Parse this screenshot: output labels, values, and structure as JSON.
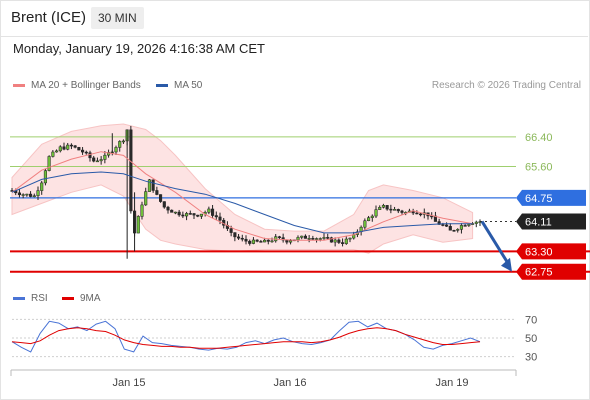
{
  "header": {
    "instrument": "Brent (ICE)",
    "interval": "30 MIN",
    "datetime": "Monday, January 19, 2026 4:16:38 AM CET"
  },
  "legend": {
    "bollinger_label": "MA 20 + Bollinger Bands",
    "ma50_label": "MA 50",
    "credit": "Research © 2026 Trading Central"
  },
  "rsi_legend": {
    "rsi_label": "RSI",
    "ma_label": "9MA"
  },
  "colors": {
    "bollinger": "#f08080",
    "ma50": "#2a5aa8",
    "resistance": "#9fcf6e",
    "pivot": "#2f6fe0",
    "support": "#e00000",
    "current": "#222222",
    "rsi": "#4a74d6",
    "rsi_ma": "#e00000"
  },
  "chart_data": [
    {
      "type": "candlestick",
      "title": "Brent (ICE)",
      "x_tick_labels": [
        "Jan 15",
        "Jan 16",
        "Jan 19"
      ],
      "ylim": [
        62.2,
        67.4
      ],
      "levels": [
        {
          "label": "66.40",
          "value": 66.4,
          "kind": "resistance"
        },
        {
          "label": "65.60",
          "value": 65.6,
          "kind": "resistance"
        },
        {
          "label": "64.75",
          "value": 64.75,
          "kind": "pivot"
        },
        {
          "label": "64.11",
          "value": 64.11,
          "kind": "current"
        },
        {
          "label": "63.30",
          "value": 63.3,
          "kind": "support"
        },
        {
          "label": "62.75",
          "value": 62.75,
          "kind": "support"
        }
      ],
      "forecast": {
        "from": 64.11,
        "to": 62.75,
        "direction": "down"
      },
      "price_path": [
        [
          0,
          64.95
        ],
        [
          3,
          64.85
        ],
        [
          6,
          64.8
        ],
        [
          8,
          65.2
        ],
        [
          10,
          65.85
        ],
        [
          13,
          66.1
        ],
        [
          16,
          66.15
        ],
        [
          19,
          66.0
        ],
        [
          22,
          65.75
        ],
        [
          25,
          65.85
        ],
        [
          28,
          66.15
        ],
        [
          30,
          66.35
        ],
        [
          31,
          66.6
        ],
        [
          32,
          64.4
        ],
        [
          33,
          63.8
        ],
        [
          35,
          64.6
        ],
        [
          37,
          65.2
        ],
        [
          39,
          64.8
        ],
        [
          41,
          64.5
        ],
        [
          44,
          64.35
        ],
        [
          47,
          64.3
        ],
        [
          50,
          64.3
        ],
        [
          53,
          64.4
        ],
        [
          56,
          64.15
        ],
        [
          59,
          63.75
        ],
        [
          62,
          63.6
        ],
        [
          65,
          63.55
        ],
        [
          68,
          63.55
        ],
        [
          71,
          63.65
        ],
        [
          74,
          63.6
        ],
        [
          77,
          63.65
        ],
        [
          80,
          63.7
        ],
        [
          83,
          63.65
        ],
        [
          86,
          63.6
        ],
        [
          89,
          63.55
        ],
        [
          92,
          63.7
        ],
        [
          94,
          64.0
        ],
        [
          96,
          64.2
        ],
        [
          98,
          64.4
        ],
        [
          100,
          64.5
        ],
        [
          102,
          64.45
        ],
        [
          104,
          64.4
        ],
        [
          106,
          64.35
        ],
        [
          108,
          64.4
        ],
        [
          110,
          64.35
        ],
        [
          112,
          64.3
        ],
        [
          114,
          64.1
        ],
        [
          116,
          64.0
        ],
        [
          118,
          63.85
        ],
        [
          120,
          63.95
        ],
        [
          122,
          64.05
        ],
        [
          124,
          64.1
        ],
        [
          126,
          64.11
        ]
      ],
      "ma50": [
        [
          0,
          64.9
        ],
        [
          8,
          65.25
        ],
        [
          16,
          65.4
        ],
        [
          24,
          65.45
        ],
        [
          30,
          65.4
        ],
        [
          36,
          65.2
        ],
        [
          44,
          65.0
        ],
        [
          52,
          64.85
        ],
        [
          60,
          64.6
        ],
        [
          68,
          64.3
        ],
        [
          76,
          64.0
        ],
        [
          84,
          63.8
        ],
        [
          92,
          63.8
        ],
        [
          100,
          63.95
        ],
        [
          108,
          64.0
        ],
        [
          116,
          64.05
        ],
        [
          124,
          64.05
        ]
      ],
      "bollinger_mid": [
        [
          0,
          64.9
        ],
        [
          8,
          65.5
        ],
        [
          16,
          65.8
        ],
        [
          24,
          66.0
        ],
        [
          30,
          65.9
        ],
        [
          36,
          65.4
        ],
        [
          44,
          64.9
        ],
        [
          52,
          64.3
        ],
        [
          60,
          63.9
        ],
        [
          68,
          63.65
        ],
        [
          76,
          63.6
        ],
        [
          84,
          63.6
        ],
        [
          92,
          63.75
        ],
        [
          100,
          64.1
        ],
        [
          108,
          64.4
        ],
        [
          116,
          64.2
        ],
        [
          124,
          64.05
        ]
      ],
      "bollinger_upper": [
        [
          0,
          65.3
        ],
        [
          8,
          66.2
        ],
        [
          16,
          66.55
        ],
        [
          24,
          66.7
        ],
        [
          30,
          66.75
        ],
        [
          36,
          66.6
        ],
        [
          40,
          66.3
        ],
        [
          44,
          65.9
        ],
        [
          52,
          65.0
        ],
        [
          60,
          64.3
        ],
        [
          68,
          63.9
        ],
        [
          76,
          63.85
        ],
        [
          84,
          63.85
        ],
        [
          92,
          64.3
        ],
        [
          96,
          64.95
        ],
        [
          100,
          65.1
        ],
        [
          108,
          64.95
        ],
        [
          116,
          64.75
        ],
        [
          124,
          64.35
        ]
      ],
      "bollinger_lower": [
        [
          0,
          64.3
        ],
        [
          8,
          64.6
        ],
        [
          16,
          64.9
        ],
        [
          24,
          65.1
        ],
        [
          30,
          64.8
        ],
        [
          36,
          63.9
        ],
        [
          40,
          63.6
        ],
        [
          44,
          63.5
        ],
        [
          52,
          63.35
        ],
        [
          60,
          63.3
        ],
        [
          68,
          63.35
        ],
        [
          76,
          63.35
        ],
        [
          84,
          63.35
        ],
        [
          92,
          63.35
        ],
        [
          96,
          63.25
        ],
        [
          100,
          63.5
        ],
        [
          108,
          63.75
        ],
        [
          116,
          63.55
        ],
        [
          124,
          63.65
        ]
      ]
    },
    {
      "type": "line",
      "title": "RSI",
      "ylim": [
        22,
        78
      ],
      "y_tick_labels": [
        "70",
        "50",
        "30"
      ],
      "series": [
        {
          "name": "RSI",
          "values": [
            46,
            40,
            35,
            55,
            68,
            66,
            60,
            62,
            58,
            65,
            68,
            60,
            38,
            35,
            52,
            45,
            44,
            42,
            41,
            40,
            38,
            37,
            39,
            38,
            40,
            45,
            47,
            44,
            48,
            50,
            46,
            44,
            43,
            45,
            48,
            58,
            67,
            68,
            62,
            66,
            60,
            58,
            54,
            48,
            40,
            38,
            42,
            44,
            47,
            50,
            46
          ]
        },
        {
          "name": "9MA",
          "values": [
            46,
            45,
            44,
            47,
            53,
            58,
            60,
            61,
            60,
            58,
            57,
            53,
            48,
            45,
            43,
            42,
            41,
            41,
            40,
            40,
            39,
            39,
            39,
            40,
            41,
            42,
            43,
            44,
            45,
            46,
            46,
            46,
            45,
            46,
            48,
            51,
            55,
            58,
            60,
            61,
            60,
            58,
            54,
            51,
            48,
            45,
            43,
            43,
            44,
            45,
            46
          ]
        }
      ]
    }
  ]
}
